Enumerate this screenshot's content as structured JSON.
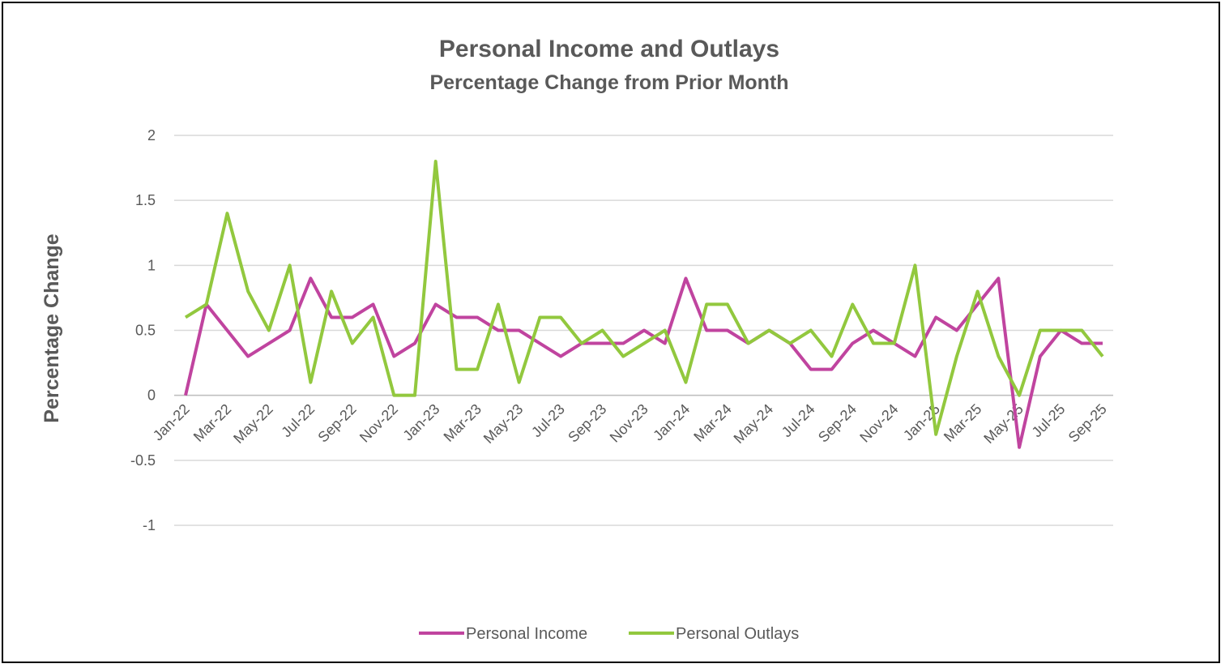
{
  "chart_data": {
    "type": "line",
    "title": "Personal Income and Outlays",
    "subtitle": "Percentage Change from Prior Month",
    "y_label": "Percentage Change",
    "categories": [
      "Jan-22",
      null,
      "Mar-22",
      null,
      "May-22",
      null,
      "Jul-22",
      null,
      "Sep-22",
      null,
      "Nov-22",
      null,
      "Jan-23",
      null,
      "Mar-23",
      null,
      "May-23",
      null,
      "Jul-23",
      null,
      "Sep-23",
      null,
      "Nov-23",
      null,
      "Jan-24",
      null,
      "Mar-24",
      null,
      "May-24",
      null,
      "Jul-24",
      null,
      "Sep-24",
      null,
      "Nov-24",
      null,
      "Jan-25",
      null,
      "Mar-25",
      null,
      "May-25",
      null,
      "Jul-25",
      null,
      "Sep-25"
    ],
    "series": [
      {
        "name": "Personal Income",
        "color": "#c0449f",
        "values": [
          0,
          0.7,
          0.5,
          0.3,
          0.4,
          0.5,
          0.9,
          0.6,
          0.6,
          0.7,
          0.3,
          0.4,
          0.7,
          0.6,
          0.6,
          0.5,
          0.5,
          0.4,
          0.3,
          0.4,
          0.4,
          0.4,
          0.5,
          0.4,
          0.9,
          0.5,
          0.5,
          0.4,
          0.5,
          0.4,
          0.2,
          0.2,
          0.4,
          0.5,
          0.4,
          0.3,
          0.6,
          0.5,
          0.7,
          0.9,
          -0.4,
          0.3,
          0.5,
          0.4,
          0.4
        ]
      },
      {
        "name": "Personal Outlays",
        "color": "#92c83e",
        "values": [
          0.6,
          0.7,
          1.4,
          0.8,
          0.5,
          1.0,
          0.1,
          0.8,
          0.4,
          0.6,
          0,
          0,
          1.8,
          0.2,
          0.2,
          0.7,
          0.1,
          0.6,
          0.6,
          0.4,
          0.5,
          0.3,
          0.4,
          0.5,
          0.1,
          0.7,
          0.7,
          0.4,
          0.5,
          0.4,
          0.5,
          0.3,
          0.7,
          0.4,
          0.4,
          1.0,
          -0.3,
          0.3,
          0.8,
          0.3,
          0,
          0.5,
          0.5,
          0.5,
          0.3
        ]
      }
    ],
    "ylim": [
      -1,
      2
    ],
    "yticks": [
      -1,
      -0.5,
      0,
      0.5,
      1,
      1.5,
      2
    ],
    "grid": true,
    "legend": "bottom"
  }
}
